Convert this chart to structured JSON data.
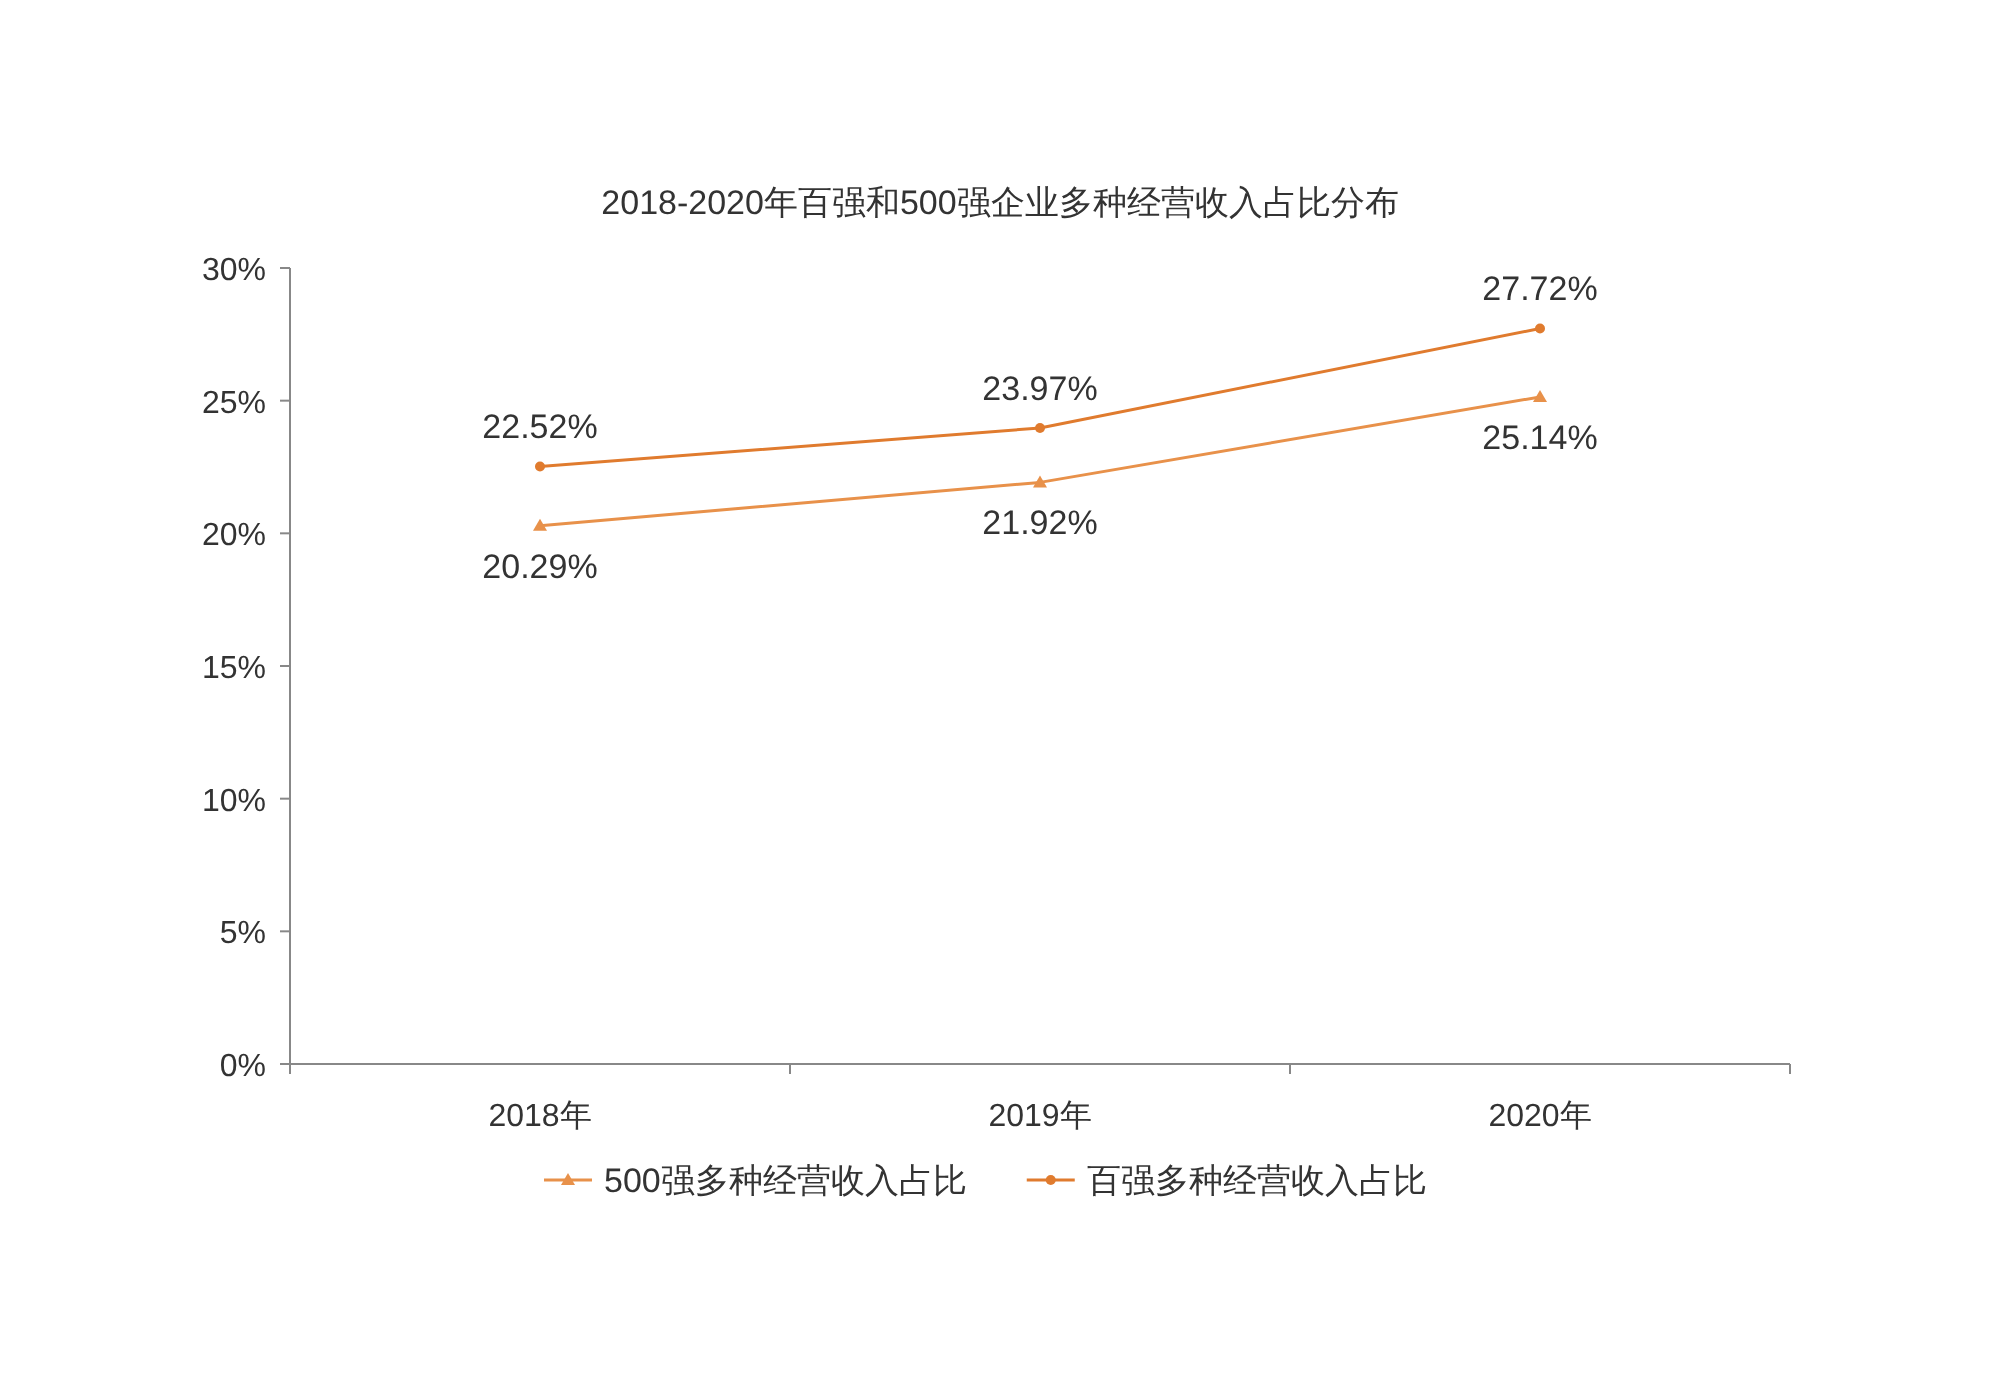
{
  "chart_data": {
    "type": "line",
    "title": "2018-2020年百强和500强企业多种经营收入占比分布",
    "categories": [
      "2018年",
      "2019年",
      "2020年"
    ],
    "series": [
      {
        "name": "500强多种经营收入占比",
        "color": "#e8914a",
        "marker": "triangle",
        "values": [
          20.29,
          21.92,
          25.14
        ],
        "value_labels": [
          "20.29%",
          "21.92%",
          "25.14%"
        ]
      },
      {
        "name": "百强多种经营收入占比",
        "color": "#e07b2e",
        "marker": "circle",
        "values": [
          22.52,
          23.97,
          27.72
        ],
        "value_labels": [
          "22.52%",
          "23.97%",
          "27.72%"
        ]
      }
    ],
    "ylim": [
      0,
      30
    ],
    "yticks": [
      {
        "value": 0,
        "label": "0%"
      },
      {
        "value": 5,
        "label": "5%"
      },
      {
        "value": 10,
        "label": "10%"
      },
      {
        "value": 15,
        "label": "15%"
      },
      {
        "value": 20,
        "label": "20%"
      },
      {
        "value": 25,
        "label": "25%"
      },
      {
        "value": 30,
        "label": "30%"
      }
    ],
    "grid": false,
    "legend": "bottom",
    "line_style": "solid"
  }
}
